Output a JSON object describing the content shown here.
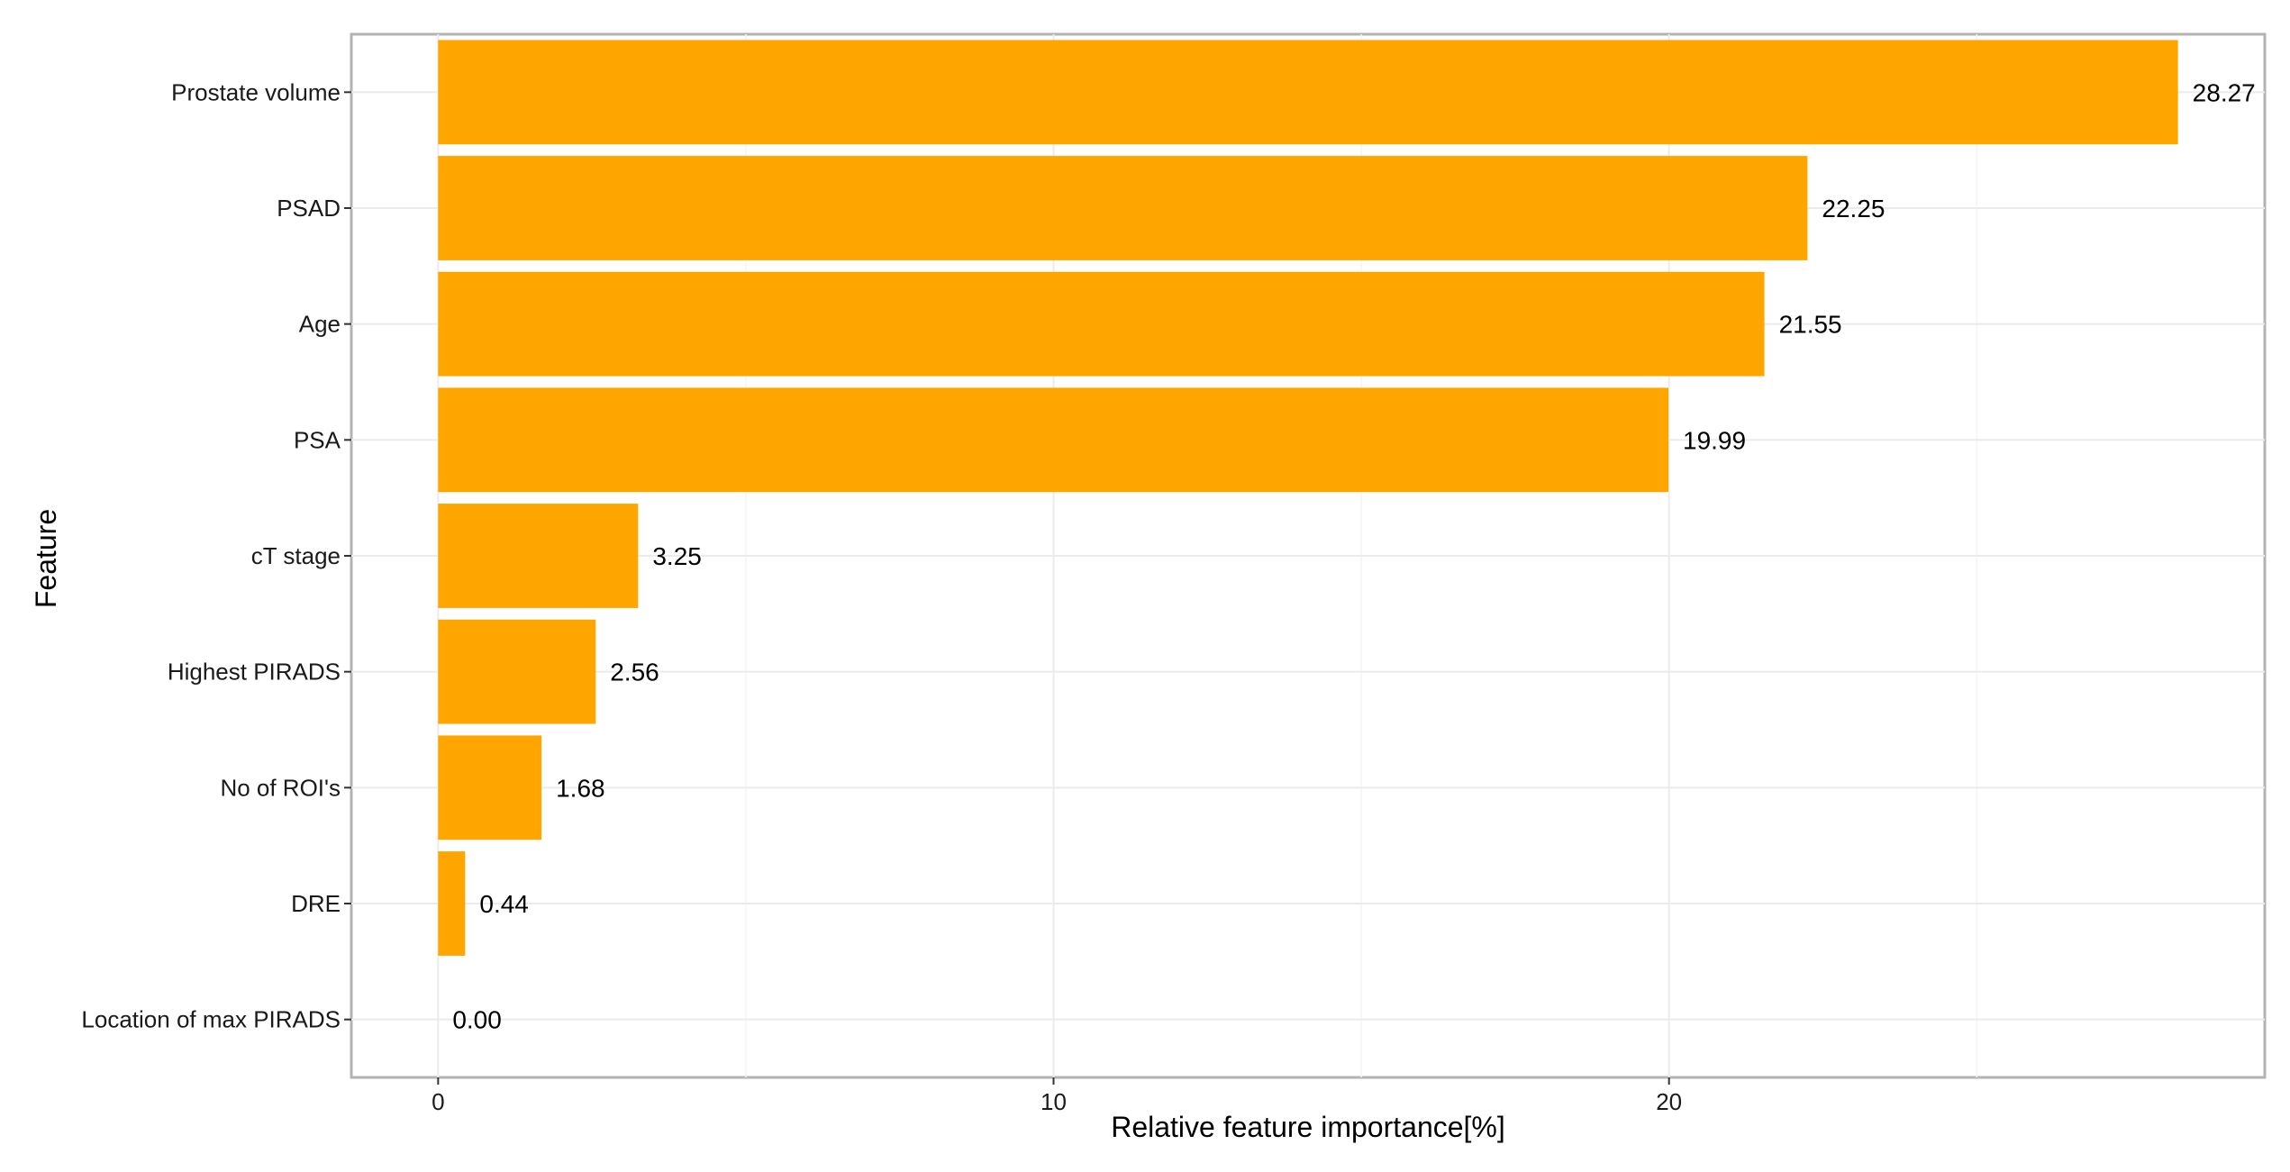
{
  "colors": {
    "bar": "#FFA500",
    "panel_border": "#B3B3B3",
    "grid": "#EBEBEB"
  },
  "chart_data": {
    "type": "bar",
    "orientation": "horizontal",
    "categories": [
      "Prostate volume",
      "PSAD",
      "Age",
      "PSA",
      "cT stage",
      "Highest PIRADS",
      "No of ROI's",
      "DRE",
      "Location of max PIRADS"
    ],
    "values": [
      28.27,
      22.25,
      21.55,
      19.99,
      3.25,
      2.56,
      1.68,
      0.44,
      0.0
    ],
    "value_labels": [
      "28.27",
      "22.25",
      "21.55",
      "19.99",
      "3.25",
      "2.56",
      "1.68",
      "0.44",
      "0.00"
    ],
    "xlabel": "Relative feature importance[%]",
    "ylabel": "Feature",
    "xlim": [
      -1.41,
      29.68
    ],
    "xticks": [
      0,
      10,
      20
    ],
    "xtick_labels": [
      "0",
      "10",
      "20"
    ],
    "grid": true,
    "legend": false
  }
}
